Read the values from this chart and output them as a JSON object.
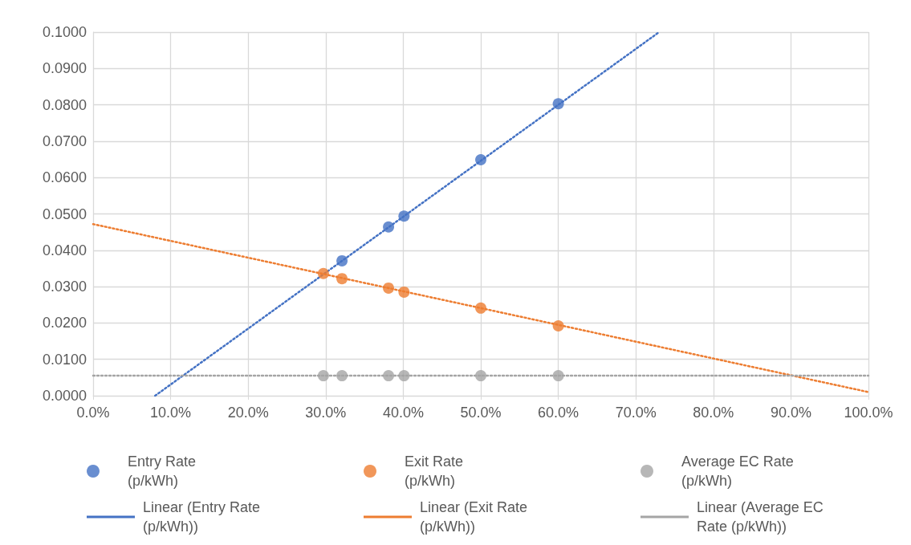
{
  "chart_data": {
    "type": "scatter",
    "xlim": [
      0,
      100
    ],
    "ylim": [
      0,
      0.1
    ],
    "xticks": [
      {
        "value": 0,
        "label": "0.0%"
      },
      {
        "value": 10,
        "label": "10.0%"
      },
      {
        "value": 20,
        "label": "20.0%"
      },
      {
        "value": 30,
        "label": "30.0%"
      },
      {
        "value": 40,
        "label": "40.0%"
      },
      {
        "value": 50,
        "label": "50.0%"
      },
      {
        "value": 60,
        "label": "60.0%"
      },
      {
        "value": 70,
        "label": "70.0%"
      },
      {
        "value": 80,
        "label": "80.0%"
      },
      {
        "value": 90,
        "label": "90.0%"
      },
      {
        "value": 100,
        "label": "100.0%"
      }
    ],
    "yticks": [
      {
        "value": 0,
        "label": "0.0000"
      },
      {
        "value": 0.01,
        "label": "0.0100"
      },
      {
        "value": 0.02,
        "label": "0.0200"
      },
      {
        "value": 0.03,
        "label": "0.0300"
      },
      {
        "value": 0.04,
        "label": "0.0400"
      },
      {
        "value": 0.05,
        "label": "0.0500"
      },
      {
        "value": 0.06,
        "label": "0.0600"
      },
      {
        "value": 0.07,
        "label": "0.0700"
      },
      {
        "value": 0.08,
        "label": "0.0800"
      },
      {
        "value": 0.09,
        "label": "0.0900"
      },
      {
        "value": 0.1,
        "label": "0.1000"
      }
    ],
    "grid": true,
    "legend": "bottom",
    "marker": "circle",
    "series": [
      {
        "name": "Entry Rate (p/kWh)",
        "color": "#4472c4",
        "x": [
          32.1,
          38.1,
          40.1,
          50,
          60
        ],
        "values": [
          0.0371,
          0.0464,
          0.0494,
          0.0649,
          0.0803
        ]
      },
      {
        "name": "Exit Rate (p/kWh)",
        "color": "#ed7d31",
        "x": [
          29.7,
          32.1,
          38.1,
          40.1,
          50,
          60
        ],
        "values": [
          0.0336,
          0.0322,
          0.0296,
          0.0285,
          0.0241,
          0.0192
        ]
      },
      {
        "name": "Average EC Rate (p/kWh)",
        "color": "#a5a5a5",
        "x": [
          29.7,
          32.1,
          38.1,
          40.1,
          50,
          60
        ],
        "values": [
          0.0055,
          0.0055,
          0.0055,
          0.0055,
          0.0055,
          0.0055
        ]
      },
      {
        "name": "Linear (Entry Rate (p/kWh))",
        "type": "line",
        "line_style": "dotted",
        "marker": "none",
        "color": "#4472c4",
        "x": [
          8,
          73
        ],
        "values": [
          0,
          0.1
        ]
      },
      {
        "name": "Linear (Exit Rate (p/kWh))",
        "type": "line",
        "line_style": "dotted",
        "marker": "none",
        "color": "#ed7d31",
        "x": [
          0,
          100
        ],
        "values": [
          0.0472,
          0.001
        ]
      },
      {
        "name": "Linear (Average EC Rate (p/kWh))",
        "type": "line",
        "line_style": "dotted",
        "marker": "none",
        "color": "#a5a5a5",
        "x": [
          0,
          100
        ],
        "values": [
          0.0055,
          0.0055
        ]
      }
    ]
  }
}
